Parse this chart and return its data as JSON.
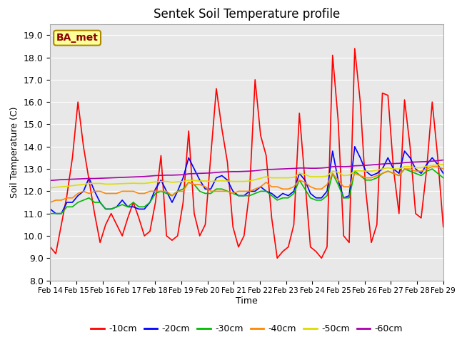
{
  "title": "Sentek Soil Temperature profile",
  "xlabel": "Time",
  "ylabel": "Soil Temperature (C)",
  "ylim": [
    8.0,
    19.5
  ],
  "yticks": [
    8.0,
    9.0,
    10.0,
    11.0,
    12.0,
    13.0,
    14.0,
    15.0,
    16.0,
    17.0,
    18.0,
    19.0
  ],
  "legend_label": "BA_met",
  "xtick_labels": [
    "Feb 14",
    "Feb 15",
    "Feb 16",
    "Feb 17",
    "Feb 18",
    "Feb 19",
    "Feb 20",
    "Feb 21",
    "Feb 22",
    "Feb 23",
    "Feb 24",
    "Feb 25",
    "Feb 26",
    "Feb 27",
    "Feb 28",
    "Feb 29"
  ],
  "series": {
    "-10cm": {
      "color": "#ff0000",
      "values": [
        9.5,
        9.2,
        10.5,
        11.8,
        13.5,
        16.0,
        14.0,
        12.5,
        11.0,
        9.7,
        10.5,
        11.0,
        10.5,
        10.0,
        10.8,
        11.5,
        10.8,
        10.0,
        10.2,
        11.5,
        13.6,
        10.0,
        9.8,
        10.0,
        11.5,
        14.7,
        11.0,
        10.0,
        10.5,
        13.6,
        16.6,
        14.8,
        13.3,
        10.4,
        9.5,
        10.0,
        12.0,
        17.0,
        14.5,
        13.6,
        10.8,
        9.0,
        9.3,
        9.5,
        10.5,
        15.5,
        12.5,
        9.5,
        9.3,
        9.0,
        9.5,
        18.1,
        15.2,
        10.0,
        9.7,
        18.4,
        16.0,
        12.0,
        9.7,
        10.5,
        16.4,
        16.3,
        13.0,
        11.0,
        16.1,
        14.0,
        11.0,
        10.8,
        13.0,
        16.0,
        13.5,
        10.4
      ]
    },
    "-20cm": {
      "color": "#0000ff",
      "values": [
        11.2,
        11.0,
        11.0,
        11.5,
        11.5,
        11.8,
        12.0,
        12.6,
        12.0,
        11.5,
        11.2,
        11.2,
        11.3,
        11.6,
        11.3,
        11.3,
        11.2,
        11.2,
        11.5,
        12.1,
        12.5,
        12.0,
        11.5,
        12.0,
        12.6,
        13.5,
        13.0,
        12.5,
        12.1,
        12.1,
        12.6,
        12.7,
        12.5,
        12.0,
        11.8,
        11.8,
        12.0,
        12.0,
        12.2,
        12.0,
        11.9,
        11.7,
        11.9,
        11.8,
        12.0,
        12.8,
        12.5,
        11.9,
        11.7,
        11.7,
        12.0,
        13.8,
        12.5,
        11.7,
        11.8,
        14.0,
        13.5,
        12.9,
        12.7,
        12.8,
        13.0,
        13.5,
        13.0,
        12.8,
        13.8,
        13.5,
        13.0,
        12.8,
        13.2,
        13.5,
        13.2,
        12.8
      ]
    },
    "-30cm": {
      "color": "#00bb00",
      "values": [
        11.0,
        11.0,
        11.0,
        11.3,
        11.3,
        11.5,
        11.6,
        11.7,
        11.5,
        11.5,
        11.2,
        11.2,
        11.3,
        11.4,
        11.3,
        11.5,
        11.3,
        11.3,
        11.5,
        11.9,
        12.0,
        11.9,
        11.8,
        12.0,
        12.1,
        12.4,
        12.3,
        12.0,
        11.9,
        11.9,
        12.1,
        12.1,
        12.0,
        11.9,
        11.8,
        11.8,
        11.8,
        11.9,
        12.0,
        12.0,
        11.8,
        11.6,
        11.7,
        11.7,
        11.9,
        12.5,
        12.1,
        11.7,
        11.6,
        11.6,
        11.8,
        12.8,
        12.3,
        11.7,
        11.7,
        12.9,
        12.7,
        12.5,
        12.5,
        12.6,
        12.8,
        12.9,
        12.8,
        12.7,
        13.0,
        12.9,
        12.8,
        12.7,
        12.9,
        13.0,
        12.8,
        12.6
      ]
    },
    "-40cm": {
      "color": "#ff8800",
      "values": [
        11.5,
        11.6,
        11.6,
        11.7,
        11.7,
        11.9,
        12.0,
        11.9,
        12.0,
        12.0,
        11.9,
        11.9,
        11.9,
        12.0,
        12.0,
        12.0,
        11.9,
        11.9,
        12.0,
        12.0,
        12.0,
        12.0,
        11.8,
        12.0,
        12.0,
        12.4,
        12.3,
        12.3,
        12.2,
        12.0,
        12.0,
        12.0,
        12.0,
        11.9,
        12.0,
        12.0,
        12.0,
        12.1,
        12.2,
        12.4,
        12.2,
        12.2,
        12.1,
        12.1,
        12.2,
        12.5,
        12.4,
        12.2,
        12.1,
        12.1,
        12.3,
        12.8,
        12.5,
        12.2,
        12.2,
        12.8,
        12.7,
        12.6,
        12.6,
        12.7,
        12.8,
        12.9,
        12.8,
        12.7,
        13.0,
        13.0,
        12.9,
        12.9,
        13.0,
        13.1,
        13.1,
        13.0
      ]
    },
    "-50cm": {
      "color": "#dddd00",
      "values": [
        12.15,
        12.18,
        12.2,
        12.22,
        12.25,
        12.28,
        12.3,
        12.35,
        12.35,
        12.35,
        12.32,
        12.32,
        12.33,
        12.34,
        12.35,
        12.36,
        12.35,
        12.35,
        12.38,
        12.42,
        12.44,
        12.44,
        12.4,
        12.42,
        12.44,
        12.5,
        12.48,
        12.46,
        12.46,
        12.44,
        12.46,
        12.47,
        12.46,
        12.44,
        12.44,
        12.44,
        12.46,
        12.52,
        12.58,
        12.65,
        12.6,
        12.6,
        12.6,
        12.6,
        12.62,
        12.8,
        12.75,
        12.65,
        12.65,
        12.65,
        12.68,
        12.9,
        12.85,
        12.7,
        12.72,
        12.92,
        12.92,
        12.9,
        12.9,
        12.95,
        13.0,
        13.05,
        13.0,
        13.0,
        13.1,
        13.1,
        13.05,
        13.05,
        13.12,
        13.15,
        13.18,
        13.2
      ]
    },
    "-60cm": {
      "color": "#aa00aa",
      "values": [
        12.48,
        12.5,
        12.52,
        12.53,
        12.54,
        12.55,
        12.56,
        12.57,
        12.57,
        12.58,
        12.59,
        12.6,
        12.61,
        12.62,
        12.63,
        12.64,
        12.65,
        12.66,
        12.68,
        12.7,
        12.71,
        12.72,
        12.72,
        12.73,
        12.74,
        12.78,
        12.79,
        12.8,
        12.81,
        12.82,
        12.84,
        12.86,
        12.87,
        12.88,
        12.88,
        12.89,
        12.9,
        12.92,
        12.95,
        12.98,
        12.98,
        12.99,
        13.0,
        13.01,
        13.02,
        13.04,
        13.04,
        13.03,
        13.03,
        13.04,
        13.06,
        13.1,
        13.11,
        13.1,
        13.11,
        13.14,
        13.15,
        13.16,
        13.18,
        13.2,
        13.22,
        13.24,
        13.24,
        13.25,
        13.28,
        13.3,
        13.31,
        13.32,
        13.33,
        13.35,
        13.37,
        13.4
      ]
    }
  }
}
